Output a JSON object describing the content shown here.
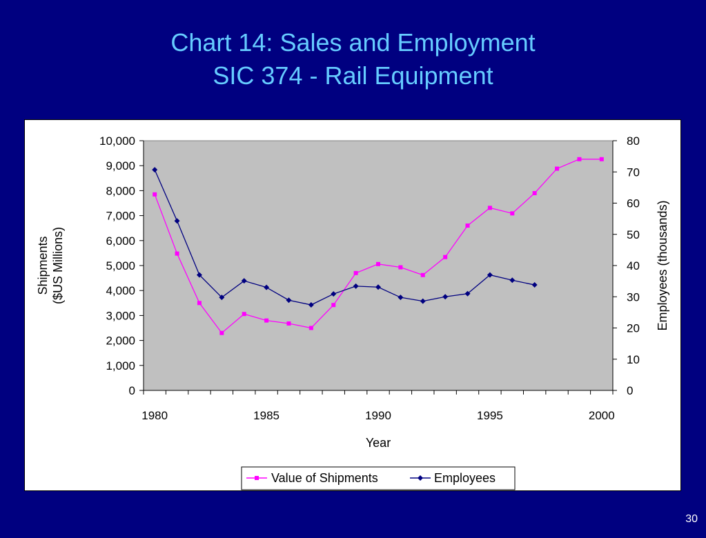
{
  "slide": {
    "title_line1": "Chart 14:  Sales and Employment",
    "title_line2": "SIC 374 - Rail Equipment",
    "page_number": "30"
  },
  "colors": {
    "background": "#000080",
    "title": "#66ccff",
    "plot_area": "#c0c0c0",
    "shipments": "#ff00ff",
    "employees": "#000080"
  },
  "chart_data": {
    "type": "line",
    "xlabel": "Year",
    "ylabel_left_line1": "Shipments",
    "ylabel_left_line2": "($US Millions)",
    "ylabel_right": "Employees (thousands)",
    "xlim": [
      1980,
      2000
    ],
    "ylim_left": [
      0,
      10000
    ],
    "ylim_right": [
      0,
      80
    ],
    "x_ticks": [
      "1980",
      "1985",
      "1990",
      "1995",
      "2000"
    ],
    "y_ticks_left": [
      "0",
      "1,000",
      "2,000",
      "3,000",
      "4,000",
      "5,000",
      "6,000",
      "7,000",
      "8,000",
      "9,000",
      "10,000"
    ],
    "y_ticks_right": [
      "0",
      "10",
      "20",
      "30",
      "40",
      "50",
      "60",
      "70",
      "80"
    ],
    "grid": false,
    "legend_position": "bottom",
    "series": [
      {
        "name": "Value of Shipments",
        "axis": "left",
        "marker": "square",
        "x": [
          1980,
          1981,
          1982,
          1983,
          1984,
          1985,
          1986,
          1987,
          1988,
          1989,
          1990,
          1991,
          1992,
          1993,
          1994,
          1995,
          1996,
          1997,
          1998,
          1999,
          2000
        ],
        "y": [
          7850,
          5480,
          3500,
          2300,
          3060,
          2800,
          2680,
          2500,
          3420,
          4700,
          5060,
          4930,
          4620,
          5340,
          6600,
          7310,
          7090,
          7900,
          8880,
          9260,
          9260
        ]
      },
      {
        "name": "Employees",
        "axis": "right",
        "marker": "diamond",
        "x": [
          1980,
          1981,
          1982,
          1983,
          1984,
          1985,
          1986,
          1987,
          1988,
          1989,
          1990,
          1991,
          1992,
          1993,
          1994,
          1995,
          1996,
          1997
        ],
        "y": [
          70.7,
          54.3,
          37.0,
          29.8,
          35.1,
          33.0,
          28.9,
          27.4,
          30.9,
          33.4,
          33.1,
          29.8,
          28.6,
          30.0,
          31.0,
          37.0,
          35.3,
          33.8
        ]
      }
    ]
  }
}
